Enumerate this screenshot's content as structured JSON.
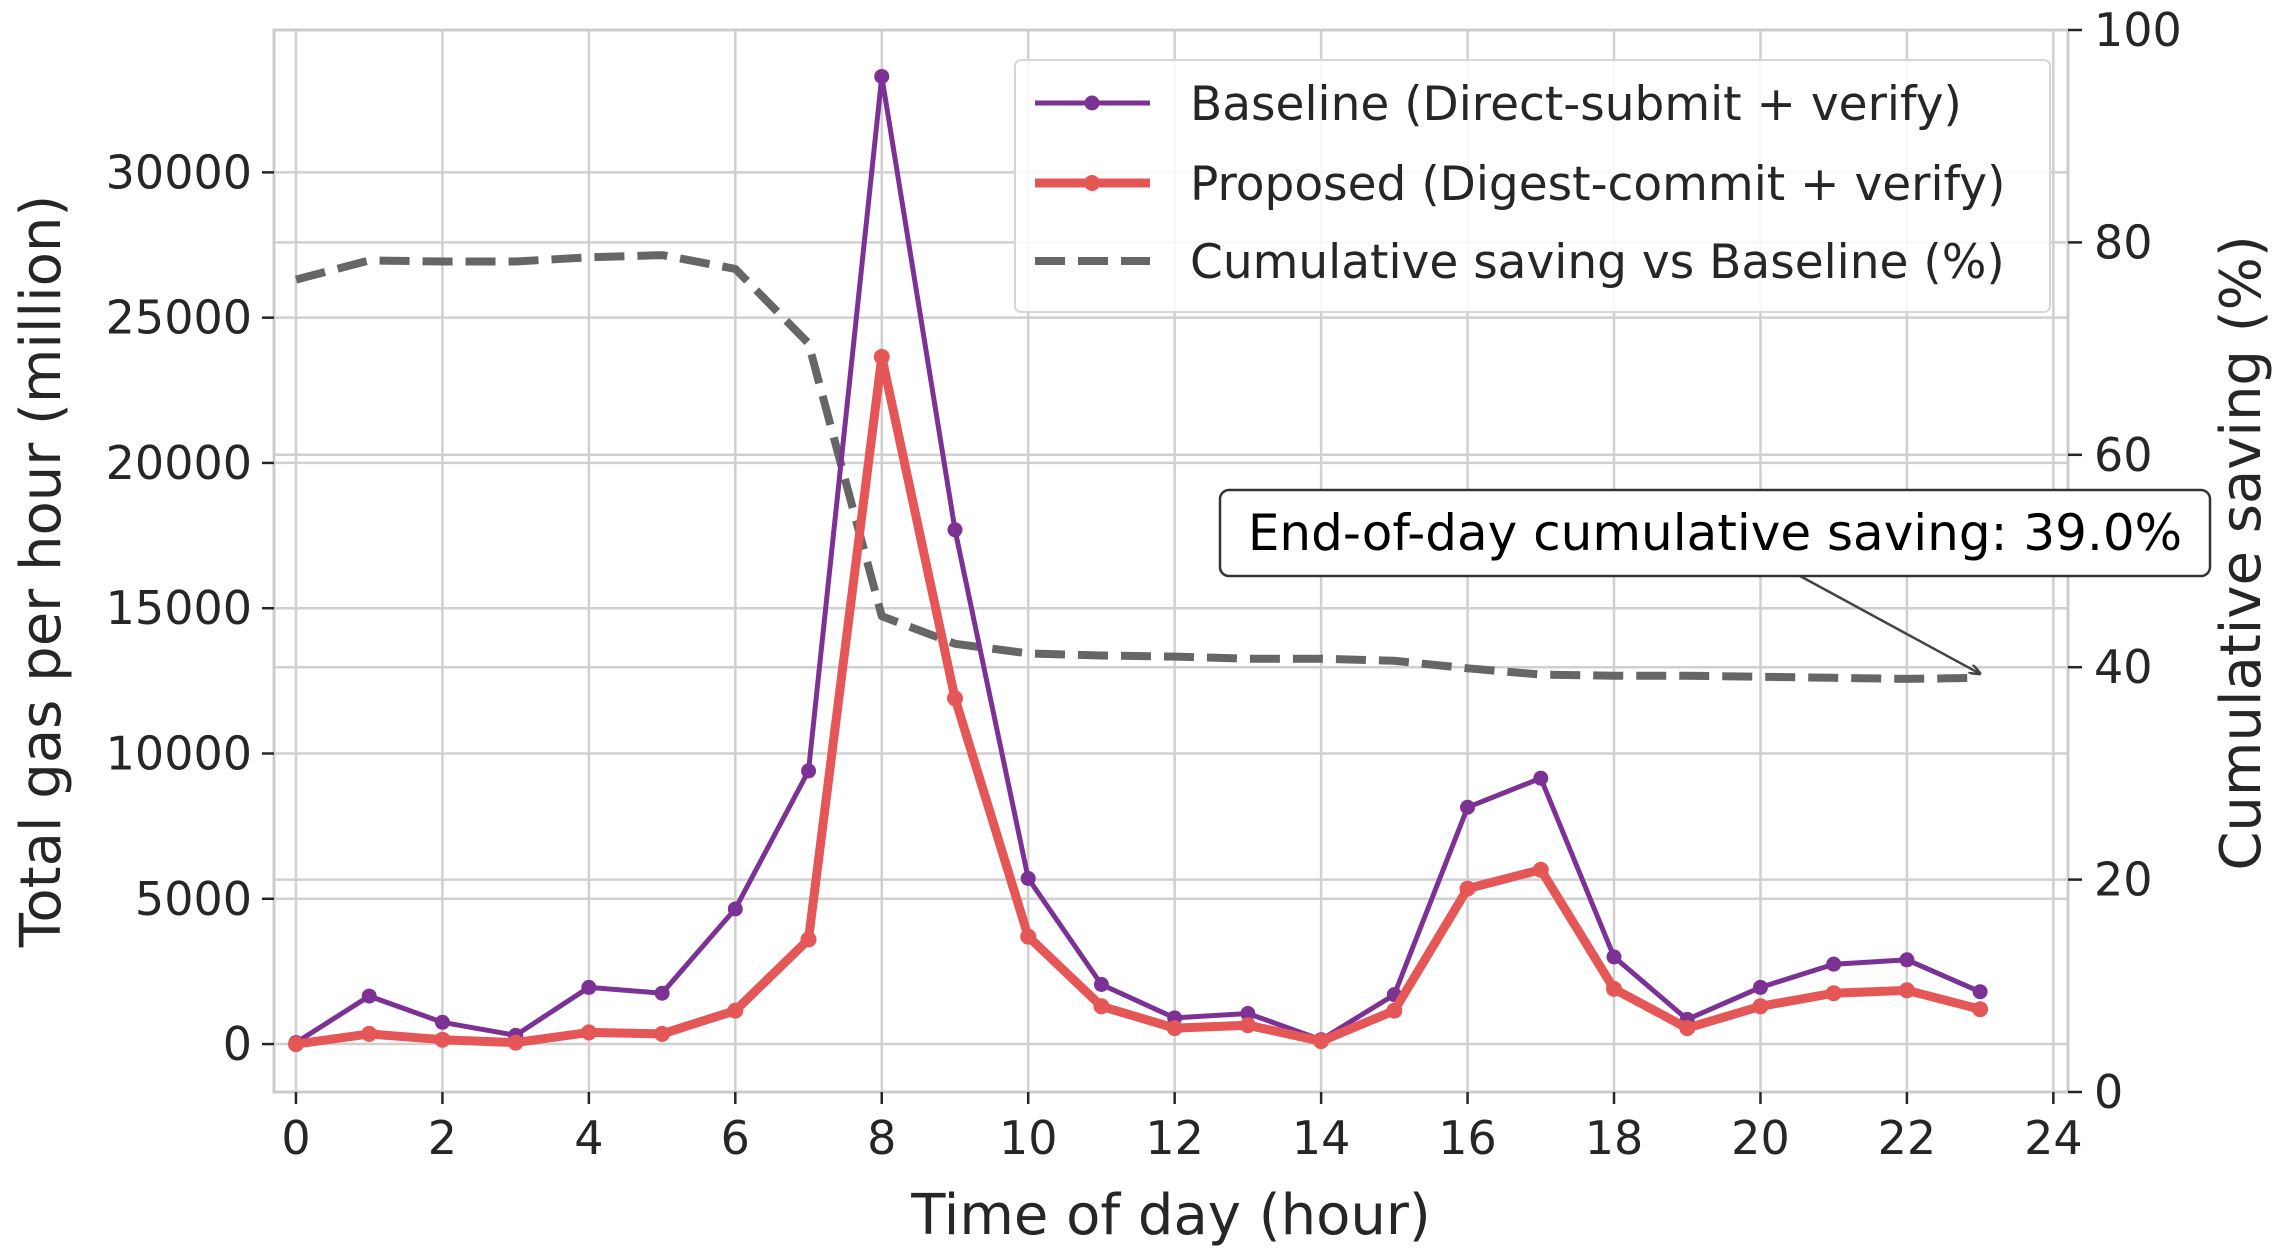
{
  "chart_data": {
    "type": "line",
    "xlabel": "Time of day (hour)",
    "ylabel": "Total gas per hour (million)",
    "y2label": "Cumulative saving (%)",
    "xlim": [
      -0.3,
      24.2
    ],
    "ylim": [
      -1650,
      34900
    ],
    "y2lim": [
      0,
      100
    ],
    "x_ticks": [
      0,
      2,
      4,
      6,
      8,
      10,
      12,
      14,
      16,
      18,
      20,
      22,
      24
    ],
    "y_ticks": [
      0,
      5000,
      10000,
      15000,
      20000,
      25000,
      30000
    ],
    "y2_ticks": [
      0,
      20,
      40,
      60,
      80,
      100
    ],
    "grid": true,
    "legend_position": "top-right",
    "x": [
      0,
      1,
      2,
      3,
      4,
      5,
      6,
      7,
      8,
      9,
      10,
      11,
      12,
      13,
      14,
      15,
      16,
      17,
      18,
      19,
      20,
      21,
      22,
      23
    ],
    "series": [
      {
        "name": "Baseline (Direct-submit + verify)",
        "axis": "left",
        "color": "#7b3294",
        "style": "solid-thin-markers",
        "values": [
          50,
          1650,
          750,
          300,
          1950,
          1750,
          4650,
          9400,
          33300,
          17700,
          5700,
          2050,
          900,
          1050,
          150,
          1700,
          8150,
          9150,
          3000,
          850,
          1950,
          2750,
          2900,
          1800
        ]
      },
      {
        "name": "Proposed (Digest-commit + verify)",
        "axis": "left",
        "color": "#e45756",
        "style": "solid-thick-markers",
        "values": [
          0,
          350,
          150,
          50,
          400,
          350,
          1150,
          3600,
          23650,
          11900,
          3700,
          1300,
          550,
          650,
          100,
          1150,
          5350,
          6000,
          1900,
          550,
          1300,
          1750,
          1850,
          1200
        ]
      },
      {
        "name": "Cumulative saving vs Baseline (%)",
        "axis": "right",
        "color": "#666666",
        "style": "dashed",
        "values": [
          76.5,
          78.3,
          78.2,
          78.2,
          78.6,
          78.8,
          77.5,
          70.5,
          44.8,
          42.2,
          41.3,
          41.1,
          41.0,
          40.8,
          40.8,
          40.6,
          39.9,
          39.3,
          39.2,
          39.2,
          39.1,
          39.0,
          38.9,
          39.0
        ]
      }
    ],
    "annotation": {
      "text": "End-of-day cumulative saving: 39.0%",
      "target_x": 23,
      "target_y2": 39.0
    }
  }
}
